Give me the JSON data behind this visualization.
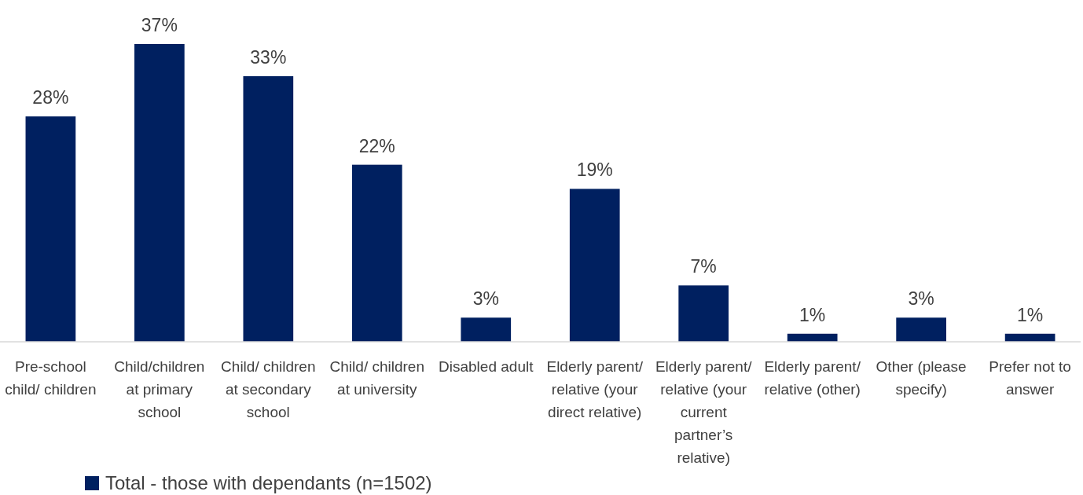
{
  "chart_data": {
    "type": "bar",
    "categories": [
      "Pre-school child/ children",
      "Child/children at primary school",
      "Child/ children at secondary school",
      "Child/ children at university",
      "Disabled adult",
      "Elderly parent/ relative (your direct relative)",
      "Elderly parent/ relative (your current partner’s relative)",
      "Elderly parent/ relative (other)",
      "Other (please specify)",
      "Prefer not to answer"
    ],
    "series": [
      {
        "name": "Total - those with dependants (n=1502)",
        "color": "#002060",
        "values": [
          28,
          37,
          33,
          22,
          3,
          19,
          7,
          1,
          3,
          1
        ],
        "value_labels": [
          "28%",
          "37%",
          "33%",
          "22%",
          "3%",
          "19%",
          "7%",
          "1%",
          "3%",
          "1%"
        ]
      }
    ],
    "legend": "bottom left"
  }
}
